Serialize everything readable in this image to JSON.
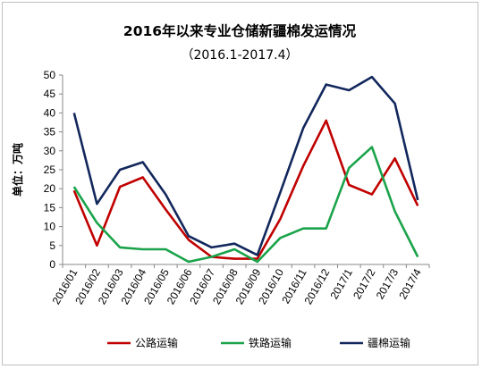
{
  "chart_data": {
    "type": "line",
    "title": "2016年以来专业仓储新疆棉发运情况",
    "subtitle": "（2016.1-2017.4）",
    "ylabel": "单位：万吨",
    "xlabel": "",
    "ylim": [
      0,
      50
    ],
    "yticks": [
      0,
      5,
      10,
      15,
      20,
      25,
      30,
      35,
      40,
      45,
      50
    ],
    "grid": false,
    "legend_position": "bottom",
    "categories": [
      "2016/01",
      "2016/02",
      "2016/03",
      "2016/04",
      "2016/05",
      "2016/06",
      "2016/07",
      "2016/08",
      "2016/09",
      "2016/10",
      "2016/11",
      "2016/12",
      "2017/1",
      "2017/2",
      "2017/3",
      "2017/4"
    ],
    "series": [
      {
        "name": "公路运输",
        "color": "#c00000",
        "values": [
          19.5,
          5,
          20.5,
          23,
          14.5,
          6.5,
          2,
          1.5,
          1.5,
          12,
          26,
          38,
          21,
          18.5,
          28,
          15.5
        ]
      },
      {
        "name": "铁路运输",
        "color": "#1aa34a",
        "values": [
          20.5,
          11,
          4.5,
          4,
          4,
          0.7,
          2,
          4,
          0.7,
          7,
          9.5,
          9.5,
          25.5,
          31,
          14,
          2
        ]
      },
      {
        "name": "疆棉运输",
        "color": "#12275c",
        "values": [
          40,
          16,
          25,
          27,
          18.5,
          7.5,
          4.5,
          5.5,
          2.5,
          19,
          36,
          47.5,
          46,
          49.5,
          42.5,
          17
        ]
      }
    ]
  }
}
